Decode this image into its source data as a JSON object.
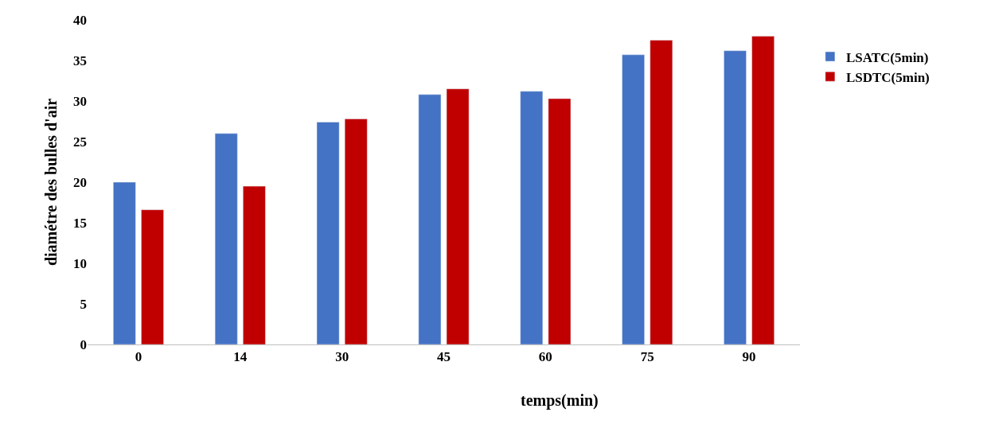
{
  "chart_data": {
    "type": "bar",
    "xlabel": "temps(min)",
    "ylabel": "diamétre des bulles d'air",
    "categories": [
      "0",
      "14",
      "30",
      "45",
      "60",
      "75",
      "90"
    ],
    "series": [
      {
        "name": "LSATC(5min)",
        "color": "#4472c4",
        "values": [
          20.0,
          26.0,
          27.4,
          30.8,
          31.2,
          35.7,
          36.2
        ]
      },
      {
        "name": "LSDTC(5min)",
        "color": "#c00000",
        "values": [
          16.6,
          19.5,
          27.8,
          31.5,
          30.3,
          37.5,
          38.0
        ]
      }
    ],
    "ylim": [
      0,
      40
    ],
    "yticks": [
      0,
      5,
      10,
      15,
      20,
      25,
      30,
      35,
      40
    ],
    "legend": "top right"
  }
}
